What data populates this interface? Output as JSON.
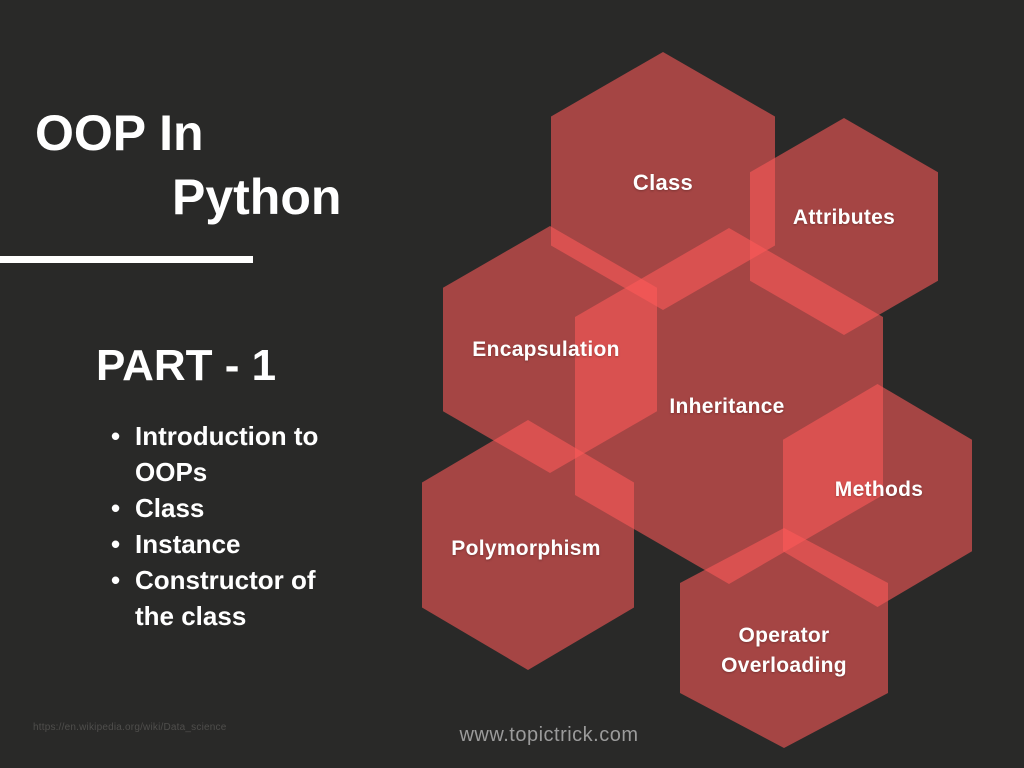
{
  "colors": {
    "background": "#292928",
    "hexagon_accent": "#ff5a5a",
    "hexagon_single_layer": "#a84444",
    "hexagon_overlap": "#dd5151",
    "text_primary": "#ffffff",
    "text_muted": "#9b9b9b",
    "text_faint": "#4f4e4c"
  },
  "title": {
    "line1": "OOP In",
    "line2": "Python"
  },
  "part": {
    "heading": "PART - 1",
    "bullets": [
      "Introduction to OOPs",
      "Class",
      "Instance",
      "Constructor of the class"
    ]
  },
  "hexagons": [
    {
      "label": "Class"
    },
    {
      "label": "Attributes"
    },
    {
      "label": "Encapsulation"
    },
    {
      "label": "Inheritance"
    },
    {
      "label": "Methods"
    },
    {
      "label": "Polymorphism"
    },
    {
      "label": "Operator",
      "label2": "Overloading"
    }
  ],
  "footer": {
    "source_url": "https://en.wikipedia.org/wiki/Data_science",
    "website": "www.topictrick.com"
  }
}
